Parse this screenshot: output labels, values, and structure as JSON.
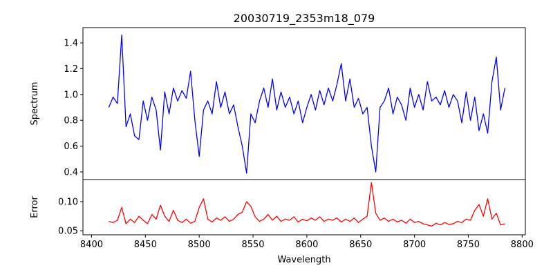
{
  "chart_data": [
    {
      "type": "line",
      "title": "20030719_2353m18_079",
      "xlabel": "",
      "ylabel": "Spectrum",
      "xlim": [
        8392,
        8803
      ],
      "ylim": [
        0.341,
        1.518
      ],
      "yticks": [
        "0.4",
        "0.6",
        "0.8",
        "1.0",
        "1.2",
        "1.4"
      ],
      "ytick_values": [
        0.4,
        0.6,
        0.8,
        1.0,
        1.2,
        1.4
      ],
      "color": "#0000ff",
      "x": [
        8416,
        8420,
        8424,
        8428,
        8432,
        8436,
        8440,
        8444,
        8448,
        8452,
        8456,
        8460,
        8464,
        8468,
        8472,
        8476,
        8480,
        8484,
        8488,
        8492,
        8496,
        8500,
        8504,
        8508,
        8512,
        8516,
        8520,
        8524,
        8528,
        8532,
        8536,
        8540,
        8544,
        8548,
        8552,
        8556,
        8560,
        8564,
        8568,
        8572,
        8576,
        8580,
        8584,
        8588,
        8592,
        8596,
        8600,
        8604,
        8608,
        8612,
        8616,
        8620,
        8624,
        8628,
        8632,
        8636,
        8640,
        8644,
        8648,
        8652,
        8656,
        8660,
        8664,
        8668,
        8672,
        8676,
        8680,
        8684,
        8688,
        8692,
        8696,
        8700,
        8704,
        8708,
        8712,
        8716,
        8720,
        8724,
        8728,
        8732,
        8736,
        8740,
        8744,
        8748,
        8752,
        8756,
        8760,
        8764,
        8768,
        8772,
        8776,
        8780,
        8784
      ],
      "y": [
        0.9,
        0.98,
        0.93,
        1.46,
        0.75,
        0.85,
        0.68,
        0.65,
        0.95,
        0.8,
        0.98,
        0.88,
        0.57,
        1.02,
        0.85,
        1.05,
        0.95,
        1.03,
        0.97,
        1.18,
        0.8,
        0.52,
        0.88,
        0.95,
        0.85,
        1.1,
        0.9,
        1.02,
        0.85,
        0.92,
        0.75,
        0.6,
        0.39,
        0.85,
        0.78,
        0.95,
        1.05,
        0.9,
        1.12,
        0.88,
        1.02,
        0.9,
        0.98,
        0.85,
        0.95,
        0.78,
        0.9,
        1.0,
        0.88,
        1.03,
        0.92,
        1.05,
        0.95,
        1.08,
        1.24,
        0.95,
        1.12,
        0.9,
        0.97,
        0.85,
        0.9,
        0.6,
        0.4,
        0.9,
        0.95,
        1.05,
        0.85,
        0.98,
        0.92,
        0.8,
        1.05,
        0.9,
        1.0,
        0.88,
        1.1,
        0.95,
        0.98,
        0.92,
        1.03,
        0.9,
        1.0,
        0.95,
        0.78,
        1.02,
        0.8,
        0.98,
        0.72,
        0.85,
        0.7,
        1.1,
        1.29,
        0.88,
        1.05
      ]
    },
    {
      "type": "line",
      "title": "",
      "xlabel": "Wavelength",
      "ylabel": "Error",
      "xlim": [
        8392,
        8803
      ],
      "ylim": [
        0.043,
        0.138
      ],
      "xticks": [
        "8400",
        "8450",
        "8500",
        "8550",
        "8600",
        "8650",
        "8700",
        "8750",
        "8800"
      ],
      "xtick_values": [
        8400,
        8450,
        8500,
        8550,
        8600,
        8650,
        8700,
        8750,
        8800
      ],
      "yticks": [
        "0.05",
        "0.10"
      ],
      "ytick_values": [
        0.05,
        0.1
      ],
      "color": "#ff0000",
      "x": [
        8416,
        8420,
        8424,
        8428,
        8432,
        8436,
        8440,
        8444,
        8448,
        8452,
        8456,
        8460,
        8464,
        8468,
        8472,
        8476,
        8480,
        8484,
        8488,
        8492,
        8496,
        8500,
        8504,
        8508,
        8512,
        8516,
        8520,
        8524,
        8528,
        8532,
        8536,
        8540,
        8544,
        8548,
        8552,
        8556,
        8560,
        8564,
        8568,
        8572,
        8576,
        8580,
        8584,
        8588,
        8592,
        8596,
        8600,
        8604,
        8608,
        8612,
        8616,
        8620,
        8624,
        8628,
        8632,
        8636,
        8640,
        8644,
        8648,
        8652,
        8656,
        8660,
        8664,
        8668,
        8672,
        8676,
        8680,
        8684,
        8688,
        8692,
        8696,
        8700,
        8704,
        8708,
        8712,
        8716,
        8720,
        8724,
        8728,
        8732,
        8736,
        8740,
        8744,
        8748,
        8752,
        8756,
        8760,
        8764,
        8768,
        8772,
        8776,
        8780,
        8784
      ],
      "y": [
        0.066,
        0.064,
        0.068,
        0.09,
        0.062,
        0.07,
        0.064,
        0.075,
        0.068,
        0.062,
        0.078,
        0.07,
        0.094,
        0.075,
        0.066,
        0.085,
        0.068,
        0.064,
        0.07,
        0.063,
        0.066,
        0.09,
        0.105,
        0.07,
        0.065,
        0.072,
        0.068,
        0.074,
        0.066,
        0.07,
        0.078,
        0.082,
        0.1,
        0.092,
        0.074,
        0.066,
        0.07,
        0.078,
        0.068,
        0.075,
        0.066,
        0.07,
        0.068,
        0.074,
        0.065,
        0.07,
        0.067,
        0.072,
        0.068,
        0.074,
        0.066,
        0.07,
        0.068,
        0.072,
        0.065,
        0.07,
        0.066,
        0.072,
        0.064,
        0.07,
        0.075,
        0.133,
        0.08,
        0.068,
        0.072,
        0.066,
        0.07,
        0.065,
        0.068,
        0.063,
        0.07,
        0.064,
        0.066,
        0.062,
        0.06,
        0.058,
        0.063,
        0.06,
        0.064,
        0.061,
        0.062,
        0.066,
        0.064,
        0.07,
        0.068,
        0.085,
        0.095,
        0.075,
        0.105,
        0.07,
        0.08,
        0.06,
        0.062
      ]
    }
  ]
}
